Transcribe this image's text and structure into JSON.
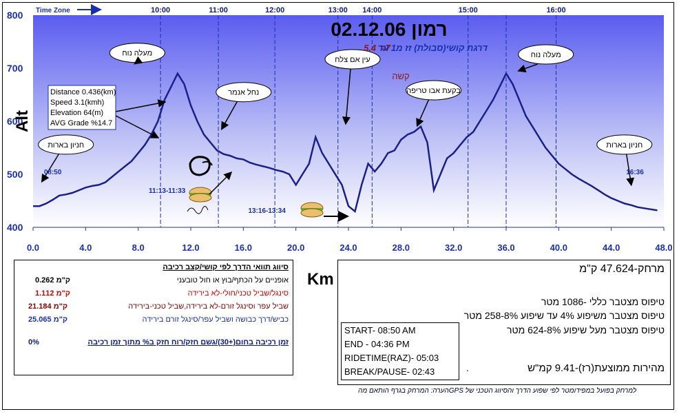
{
  "chart_data": {
    "type": "area",
    "title": "רמון 02.12.06",
    "subtitle_left": "5.4",
    "subtitle_mid": "=7",
    "subtitle_text": "דרגת קושי(סבולת) זז מ1 עד",
    "difficulty_label": "קשה",
    "xlabel": "Km",
    "ylabel": "Alt",
    "xlim": [
      0,
      48
    ],
    "ylim": [
      400,
      800
    ],
    "x_ticks": [
      "0.0",
      "4.0",
      "8.0",
      "12.0",
      "16.0",
      "20.0",
      "24.0",
      "28.0",
      "32.0",
      "36.0",
      "40.0",
      "44.0",
      "48.0"
    ],
    "y_ticks": [
      "400",
      "500",
      "600",
      "700",
      "800"
    ],
    "time_zone_label": "Time Zone",
    "time_ticks": [
      {
        "label": "10:00",
        "km": 9.7
      },
      {
        "label": "11:00",
        "km": 14.1
      },
      {
        "label": "12:00",
        "km": 18.4
      },
      {
        "label": "13:00",
        "km": 23.2
      },
      {
        "label": "14:00",
        "km": 25.8
      },
      {
        "label": "15:00",
        "km": 33.1
      },
      {
        "label": "16:00",
        "km": 39.8
      }
    ],
    "extra_dashed_km": [
      36.0
    ],
    "series": [
      {
        "x": [
          0,
          0.5,
          1,
          1.5,
          2,
          2.5,
          3,
          3.5,
          4,
          4.5,
          5,
          5.5,
          6,
          6.5,
          7,
          7.5,
          8,
          8.5,
          9,
          9.5,
          10,
          10.5,
          11,
          11.5,
          12,
          12.5,
          13,
          13.5,
          14,
          14.5,
          15,
          15.5,
          16,
          16.5,
          17,
          17.5,
          18,
          18.5,
          19,
          19.5,
          20,
          20.5,
          21,
          21.5,
          22,
          22.5,
          23,
          23.5,
          24,
          24.5,
          25,
          25.5,
          26,
          26.5,
          27,
          27.5,
          28,
          28.5,
          29,
          29.5,
          30,
          30.5,
          31,
          31.5,
          32,
          32.5,
          33,
          33.5,
          34,
          34.5,
          35,
          35.5,
          36,
          36.5,
          37,
          37.5,
          38,
          38.5,
          39,
          39.5,
          40,
          40.5,
          41,
          41.5,
          42,
          42.5,
          43,
          43.5,
          44,
          44.5,
          45,
          45.5,
          46,
          46.5,
          47,
          47.5
        ],
        "y": [
          440,
          440,
          445,
          452,
          460,
          462,
          465,
          470,
          475,
          478,
          480,
          485,
          495,
          505,
          515,
          525,
          540,
          555,
          575,
          600,
          640,
          665,
          690,
          670,
          630,
          600,
          575,
          560,
          545,
          538,
          535,
          530,
          528,
          522,
          518,
          515,
          512,
          508,
          505,
          500,
          480,
          500,
          520,
          570,
          540,
          520,
          500,
          480,
          440,
          430,
          480,
          520,
          505,
          520,
          540,
          545,
          565,
          575,
          580,
          590,
          560,
          470,
          500,
          530,
          540,
          555,
          570,
          580,
          600,
          620,
          640,
          665,
          690,
          670,
          640,
          610,
          590,
          570,
          550,
          535,
          520,
          510,
          500,
          492,
          485,
          478,
          470,
          462,
          455,
          450,
          445,
          442,
          438,
          436,
          434,
          432
        ]
      }
    ],
    "annotations": [
      {
        "text": "מעלה נוח",
        "km": 9.5,
        "alt": 690
      },
      {
        "text": "נחל אנמר",
        "km": 15.5,
        "alt": 590
      },
      {
        "text": "עין אם צלח",
        "km": 24,
        "alt": 600
      },
      {
        "text": "בקעת אבו טריפה",
        "km": 31,
        "alt": 600
      },
      {
        "text": "מעלה נוח",
        "km": 38.5,
        "alt": 700
      },
      {
        "text": "חניון בארות",
        "km": 2.5,
        "alt": 530
      },
      {
        "text": "חניון בארות",
        "km": 45,
        "alt": 530
      }
    ],
    "time_labels": [
      {
        "text": "08:50",
        "km": 1.5,
        "alt": 500
      },
      {
        "text": "11:13-11:33",
        "km": 10.2,
        "alt": 465
      },
      {
        "text": "13:16-13:34",
        "km": 17.8,
        "alt": 427
      },
      {
        "text": "16:36",
        "km": 45.8,
        "alt": 500
      }
    ],
    "info_box": [
      "Distance 0.436(km)",
      "Speed 3.1(kmh)",
      "Elevation 64(m)",
      "AVG Grade %14.7"
    ],
    "grid": false,
    "legend": "none"
  },
  "left_box": {
    "header": "סיווג תוואי הדרך לפי קושי/קצב רכיבה",
    "rows": [
      {
        "label": "אופניים על הכתף/בוץ או חול טובעני",
        "value": "0.262 ק\"מ",
        "color": "#000000"
      },
      {
        "label": "סינגל/שביל טכני/חולי-לא בירידה",
        "value": "1.112 ק\"מ",
        "color": "#cc0000"
      },
      {
        "label": "שביל עפר וסינגל זורם-לא בירידה,שביל טכני-בירידה",
        "value": "21.184 ק\"מ",
        "color": "#8b0000"
      },
      {
        "label": "כביש/דרך כבושה ושביל עפר/סינגל זורם בירידה",
        "value": "25.065 ק\"מ",
        "color": "#1a2fb0"
      }
    ],
    "footer": "זמן רכיבה בחום(+30)/גשם חזק/רוח חזק ב% מתוך זמן רכיבה",
    "footer_value": "0%"
  },
  "right_box": {
    "distance": "מרחק-47.624 ק\"מ",
    "climb_total": "טיפוס מצטבר כללי  -1086 מטר",
    "climb_4_8": "טיפוס מצטבר משיפוע 4% עד שיפוע 8%-258 מטר",
    "climb_8": "טיפוס מצטבר מעל שיפוע 8%-624 מטר",
    "avg_speed": "מהירות ממוצעת(רז)-9.41 קמ\"ש",
    "dot": "."
  },
  "time_box": {
    "start": "START- 08:50 AM",
    "end": "END    - 04:36 PM",
    "ridetime": "RIDETIME(RAZ)- 05:03",
    "break": "BREAK/PAUSE- 02:43"
  },
  "note": "הערה: המרחק בגרף הותאם מהGPS למרחק בפועל במפידומטר לפי שפוע הדרך והסיווג הטכני של"
}
